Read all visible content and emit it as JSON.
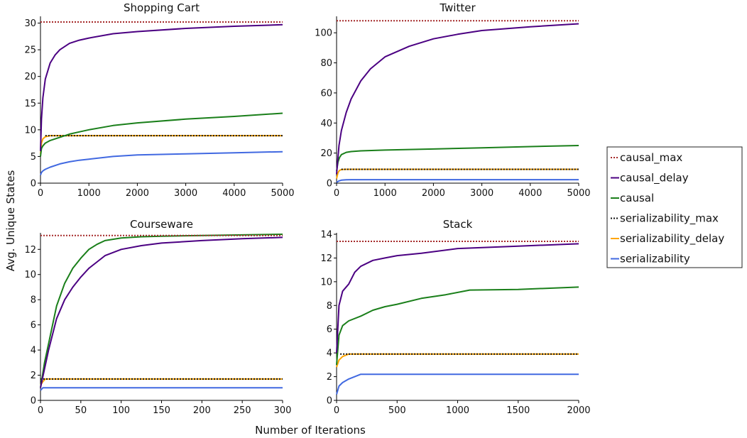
{
  "figure": {
    "ylabel": "Avg. Unique States",
    "xlabel": "Number of Iterations"
  },
  "legend": {
    "placement": "center-right",
    "entries": [
      {
        "name": "causal_max",
        "color": "#a52a2a",
        "style": "dotted"
      },
      {
        "name": "causal_delay",
        "color": "#4b0082",
        "style": "solid"
      },
      {
        "name": "causal",
        "color": "#1a7f1a",
        "style": "solid"
      },
      {
        "name": "serializability_max",
        "color": "#111111",
        "style": "dotted"
      },
      {
        "name": "serializability_delay",
        "color": "#ffa500",
        "style": "solid"
      },
      {
        "name": "serializability",
        "color": "#4169e1",
        "style": "solid"
      }
    ]
  },
  "chart_data": [
    {
      "type": "line",
      "title": "Shopping Cart",
      "xlim": [
        0,
        5000
      ],
      "ylim": [
        0,
        31
      ],
      "xticks": [
        0,
        1000,
        2000,
        3000,
        4000,
        5000
      ],
      "yticks": [
        0,
        5,
        10,
        15,
        20,
        25,
        30
      ],
      "series": [
        {
          "name": "causal_max",
          "x": [
            0,
            5000
          ],
          "y": [
            30.2,
            30.2
          ]
        },
        {
          "name": "causal_delay",
          "x": [
            0,
            20,
            50,
            100,
            200,
            300,
            400,
            600,
            800,
            1000,
            1500,
            2000,
            3000,
            4000,
            5000
          ],
          "y": [
            6,
            12,
            16,
            19.5,
            22.5,
            24,
            25,
            26.2,
            26.8,
            27.2,
            28,
            28.4,
            29,
            29.4,
            29.7
          ]
        },
        {
          "name": "causal",
          "x": [
            0,
            20,
            50,
            100,
            200,
            400,
            600,
            800,
            1000,
            1500,
            2000,
            3000,
            4000,
            5000
          ],
          "y": [
            5,
            6.5,
            7,
            7.5,
            8,
            8.6,
            9.2,
            9.6,
            10,
            10.8,
            11.3,
            12,
            12.5,
            13.1
          ]
        },
        {
          "name": "serializability_max",
          "x": [
            100,
            5000
          ],
          "y": [
            8.9,
            8.9
          ]
        },
        {
          "name": "serializability_delay",
          "x": [
            0,
            20,
            50,
            100,
            200,
            300,
            5000
          ],
          "y": [
            5.5,
            7.5,
            8.3,
            8.7,
            8.9,
            8.9,
            8.9
          ]
        },
        {
          "name": "serializability",
          "x": [
            0,
            20,
            50,
            100,
            200,
            400,
            600,
            800,
            1000,
            1500,
            2000,
            3000,
            4000,
            5000
          ],
          "y": [
            1.5,
            2,
            2.3,
            2.6,
            3,
            3.6,
            4,
            4.3,
            4.5,
            5,
            5.3,
            5.5,
            5.7,
            5.9
          ]
        }
      ]
    },
    {
      "type": "line",
      "title": "Twitter",
      "xlim": [
        0,
        5000
      ],
      "ylim": [
        0,
        110
      ],
      "xticks": [
        0,
        1000,
        2000,
        3000,
        4000,
        5000
      ],
      "yticks": [
        0,
        20,
        40,
        60,
        80,
        100
      ],
      "series": [
        {
          "name": "causal_max",
          "x": [
            0,
            5000
          ],
          "y": [
            108,
            108
          ]
        },
        {
          "name": "causal_delay",
          "x": [
            0,
            50,
            100,
            200,
            300,
            500,
            700,
            1000,
            1500,
            2000,
            2500,
            3000,
            4000,
            5000
          ],
          "y": [
            6,
            25,
            35,
            47,
            56,
            68,
            76,
            84,
            91,
            96,
            99,
            101.5,
            104,
            106
          ]
        },
        {
          "name": "causal",
          "x": [
            0,
            30,
            60,
            100,
            200,
            300,
            500,
            1000,
            2000,
            3000,
            4000,
            5000
          ],
          "y": [
            8,
            14,
            17,
            19,
            20.5,
            21,
            21.5,
            22,
            22.7,
            23.5,
            24.3,
            25
          ]
        },
        {
          "name": "serializability_max",
          "x": [
            100,
            5000
          ],
          "y": [
            9.2,
            9.2
          ]
        },
        {
          "name": "serializability_delay",
          "x": [
            0,
            30,
            60,
            100,
            200,
            5000
          ],
          "y": [
            3,
            7,
            8.5,
            9,
            9.2,
            9.2
          ]
        },
        {
          "name": "serializability",
          "x": [
            0,
            50,
            100,
            200,
            300,
            5000
          ],
          "y": [
            0.5,
            1.5,
            2,
            2.2,
            2.3,
            2.3
          ]
        }
      ]
    },
    {
      "type": "line",
      "title": "Courseware",
      "xlim": [
        0,
        300
      ],
      "ylim": [
        0,
        13.2
      ],
      "xticks": [
        0,
        50,
        100,
        150,
        200,
        250,
        300
      ],
      "yticks": [
        0,
        2,
        4,
        6,
        8,
        10,
        12
      ],
      "series": [
        {
          "name": "causal_max",
          "x": [
            0,
            300
          ],
          "y": [
            13.1,
            13.1
          ]
        },
        {
          "name": "causal_delay",
          "x": [
            0,
            5,
            10,
            20,
            30,
            40,
            50,
            60,
            70,
            80,
            100,
            125,
            150,
            200,
            250,
            300
          ],
          "y": [
            1,
            2.5,
            4,
            6.5,
            8,
            9,
            9.8,
            10.5,
            11,
            11.5,
            12,
            12.3,
            12.5,
            12.7,
            12.85,
            12.95
          ]
        },
        {
          "name": "causal",
          "x": [
            0,
            5,
            10,
            20,
            30,
            40,
            50,
            60,
            70,
            80,
            100,
            125,
            150,
            200,
            250,
            300
          ],
          "y": [
            1,
            3,
            4.5,
            7.5,
            9.3,
            10.5,
            11.3,
            12,
            12.4,
            12.7,
            12.9,
            13,
            13.05,
            13.1,
            13.15,
            13.2
          ]
        },
        {
          "name": "serializability_max",
          "x": [
            0,
            300
          ],
          "y": [
            1.7,
            1.7
          ]
        },
        {
          "name": "serializability_delay",
          "x": [
            0,
            3,
            6,
            300
          ],
          "y": [
            1.2,
            1.5,
            1.7,
            1.7
          ]
        },
        {
          "name": "serializability",
          "x": [
            0,
            3,
            300
          ],
          "y": [
            0.8,
            1,
            1
          ]
        }
      ]
    },
    {
      "type": "line",
      "title": "Stack",
      "xlim": [
        0,
        2000
      ],
      "ylim": [
        0,
        14
      ],
      "xticks": [
        0,
        500,
        1000,
        1500,
        2000
      ],
      "yticks": [
        0,
        2,
        4,
        6,
        8,
        10,
        12,
        14
      ],
      "series": [
        {
          "name": "causal_max",
          "x": [
            0,
            2000
          ],
          "y": [
            13.4,
            13.4
          ]
        },
        {
          "name": "causal_delay",
          "x": [
            0,
            20,
            50,
            100,
            150,
            200,
            300,
            400,
            500,
            700,
            1000,
            1500,
            2000
          ],
          "y": [
            4,
            8,
            9.2,
            9.8,
            10.8,
            11.3,
            11.8,
            12,
            12.2,
            12.4,
            12.8,
            13,
            13.2
          ]
        },
        {
          "name": "causal",
          "x": [
            0,
            20,
            50,
            100,
            200,
            300,
            400,
            500,
            700,
            900,
            1100,
            1500,
            2000
          ],
          "y": [
            3,
            5.5,
            6.3,
            6.7,
            7.1,
            7.6,
            7.9,
            8.1,
            8.6,
            8.9,
            9.3,
            9.35,
            9.55
          ]
        },
        {
          "name": "serializability_max",
          "x": [
            30,
            2000
          ],
          "y": [
            3.9,
            3.9
          ]
        },
        {
          "name": "serializability_delay",
          "x": [
            0,
            20,
            50,
            100,
            150,
            2000
          ],
          "y": [
            2.8,
            3.4,
            3.7,
            3.9,
            3.9,
            3.9
          ]
        },
        {
          "name": "serializability",
          "x": [
            0,
            20,
            50,
            100,
            150,
            200,
            2000
          ],
          "y": [
            0.5,
            1.2,
            1.5,
            1.8,
            2,
            2.2,
            2.2
          ]
        }
      ]
    }
  ]
}
